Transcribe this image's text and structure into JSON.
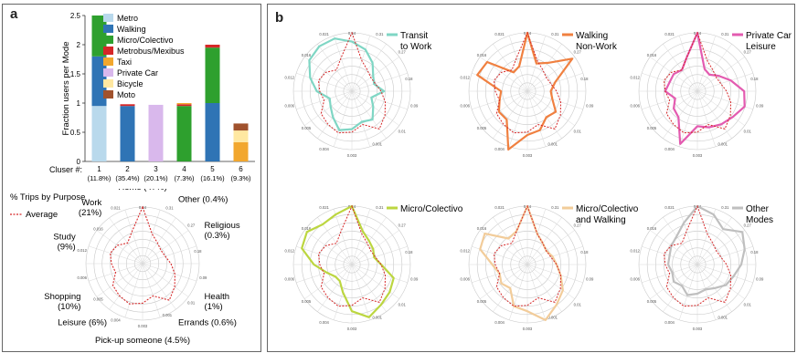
{
  "panel_a_label": "a",
  "panel_b_label": "b",
  "colors": {
    "Metro": "#b9d9ec",
    "Walking": "#2f74b5",
    "Micro/Colectivo": "#2ea02e",
    "Metrobus/Mexibus": "#d62728",
    "Taxi": "#f2a72e",
    "Private Car": "#d9b8ec",
    "Bicycle": "#ffe8a1",
    "Moto": "#a0522d",
    "average": "#d62728",
    "Transit to Work": "#7fd6c4",
    "Walking Non-Work": "#f08040",
    "Private Car Leisure": "#e35bb0",
    "Micro/Colectivo_mode": "#bcd640",
    "Micro/Colectivo and Walking": "#f2cc9a",
    "Other Modes": "#bfbfbf"
  },
  "chart_data": [
    {
      "type": "bar",
      "stacked": true,
      "ylabel": "Fraction users per Mode",
      "xlabel": "Cluser #:",
      "ylim": [
        0,
        2.5
      ],
      "yticks": [
        0,
        0.5,
        1,
        1.5,
        2,
        2.5
      ],
      "categories": [
        "1",
        "2",
        "3",
        "4",
        "5",
        "6"
      ],
      "category_sublabels": [
        "(11.8%)",
        "(35.4%)",
        "(20.1%)",
        "(7.3%)",
        "(16.1%)",
        "(9.3%)"
      ],
      "legend": [
        "Metro",
        "Walking",
        "Micro/Colectivo",
        "Metrobus/Mexibus",
        "Taxi",
        "Private Car",
        "Bicycle",
        "Moto"
      ],
      "series": [
        {
          "name": "Metro",
          "values": [
            0.95,
            0,
            0,
            0,
            0,
            0
          ]
        },
        {
          "name": "Walking",
          "values": [
            0.85,
            0.95,
            0,
            0,
            1.0,
            0
          ]
        },
        {
          "name": "Micro/Colectivo",
          "values": [
            0.7,
            0,
            0,
            0.95,
            0.95,
            0
          ]
        },
        {
          "name": "Metrobus/Mexibus",
          "values": [
            0,
            0.03,
            0,
            0.03,
            0.05,
            0
          ]
        },
        {
          "name": "Taxi",
          "values": [
            0,
            0,
            0,
            0.02,
            0,
            0.33
          ]
        },
        {
          "name": "Private Car",
          "values": [
            0,
            0,
            0.97,
            0,
            0,
            0
          ]
        },
        {
          "name": "Bicycle",
          "values": [
            0,
            0,
            0,
            0,
            0,
            0.2
          ]
        },
        {
          "name": "Moto",
          "values": [
            0,
            0,
            0,
            0,
            0,
            0.12
          ]
        }
      ]
    },
    {
      "type": "radar",
      "title": "% Trips by Purpose",
      "average_label": "Average",
      "purposes": [
        {
          "name": "Home (47%)",
          "angle": 0
        },
        {
          "name": "Other (0.4%)",
          "angle": 30
        },
        {
          "name": "Religious\n(0.3%)",
          "angle": 60
        },
        {
          "name": "Health\n(1%)",
          "angle": 120
        },
        {
          "name": "Errands (0.6%)",
          "angle": 150
        },
        {
          "name": "Pick-up someone (4.5%)",
          "angle": 180
        },
        {
          "name": "Leisure (6%)",
          "angle": 210
        },
        {
          "name": "Shopping\n(10%)",
          "angle": 240
        },
        {
          "name": "Study\n(9%)",
          "angle": 290
        },
        {
          "name": "Work\n(21%)",
          "angle": 325
        }
      ],
      "ring_labels": [
        "0.54",
        "0.31",
        "0.27",
        "0.18",
        "0.09",
        "0.01",
        "0.001",
        "0.003",
        "0.004",
        "0.005",
        "0.006",
        "0.012",
        "0.016",
        "0.021"
      ],
      "average_radii": [
        1.0,
        0.55,
        0.45,
        0.4,
        0.42,
        0.5,
        0.6,
        0.7,
        0.8,
        0.6,
        0.7,
        0.75,
        0.7,
        0.65,
        0.5,
        0.55,
        0.6,
        0.55,
        0.45,
        0.6
      ]
    },
    {
      "type": "radar",
      "panels": [
        {
          "name": "Transit\nto Work",
          "color_key": "Transit to Work",
          "radii": [
            0.85,
            0.75,
            0.6,
            0.45,
            0.4,
            0.55,
            0.35,
            0.45,
            0.6,
            0.55,
            0.65,
            0.7,
            0.55,
            0.45,
            0.4,
            0.6,
            0.75,
            0.9,
            0.95,
            0.95
          ]
        },
        {
          "name": "Walking\nNon-Work",
          "color_key": "Walking Non-Work",
          "radii": [
            1.0,
            0.5,
            0.6,
            0.95,
            0.5,
            0.4,
            0.45,
            0.6,
            0.55,
            0.7,
            0.75,
            1.05,
            0.6,
            0.6,
            0.5,
            0.45,
            0.9,
            0.85,
            0.4,
            0.45
          ]
        },
        {
          "name": "Private Car\nLeisure",
          "color_key": "Private Car Leisure",
          "radii": [
            1.0,
            0.4,
            0.35,
            0.45,
            0.6,
            0.8,
            0.85,
            0.75,
            0.7,
            0.65,
            0.6,
            0.95,
            0.55,
            0.5,
            0.4,
            0.55,
            0.5,
            0.5,
            0.45,
            0.6
          ]
        },
        {
          "name": "Micro/Colectivo",
          "color_key": "Micro/Colectivo_mode",
          "radii": [
            1.0,
            0.6,
            0.5,
            0.45,
            0.4,
            0.5,
            0.75,
            0.8,
            0.85,
            0.95,
            0.8,
            0.5,
            0.35,
            0.35,
            0.45,
            0.65,
            0.9,
            0.95,
            0.85,
            0.9
          ]
        },
        {
          "name": "Micro/Colectivo\nand Walking",
          "color_key": "Micro/Colectivo and Walking",
          "radii": [
            1.0,
            0.55,
            0.45,
            0.4,
            0.45,
            0.5,
            0.6,
            0.75,
            0.85,
            1.0,
            0.8,
            0.75,
            0.5,
            0.55,
            0.5,
            0.6,
            0.85,
            0.9,
            0.55,
            0.6
          ]
        },
        {
          "name": "Other\nModes",
          "color_key": "Other Modes",
          "radii": [
            1.0,
            0.9,
            0.75,
            0.95,
            0.85,
            0.75,
            0.65,
            0.6,
            0.5,
            0.45,
            0.5,
            0.55,
            0.45,
            0.5,
            0.45,
            0.5,
            0.5,
            0.55,
            0.6,
            0.75
          ]
        }
      ]
    }
  ]
}
